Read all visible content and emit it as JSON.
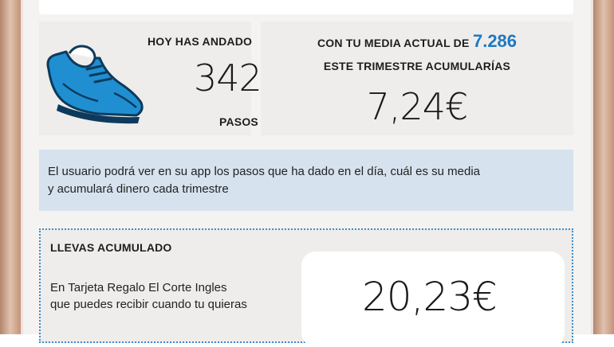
{
  "steps": {
    "title": "HOY HAS ANDADO",
    "count": "342",
    "unit": "PASOS",
    "icon": "shoe-icon",
    "icon_color": "#1f8fd2"
  },
  "average": {
    "line1_prefix": "CON TU MEDIA ACTUAL DE",
    "line1_value": "7.286",
    "line2": "ESTE TRIMESTRE ACUMULARÍAS",
    "amount": "7,24€",
    "value_color": "#1f78bf"
  },
  "info": {
    "line1": "El usuario podrá ver en su app los pasos que ha dado en el día, cuál es su media",
    "line2": "y acumulará dinero cada trimestre"
  },
  "accumulated": {
    "title": "LLEVAS ACUMULADO",
    "desc_line1": "En Tarjeta Regalo El Corte Ingles",
    "desc_line2": "que puedes recibir cuando tu quieras",
    "amount": "20,23€",
    "border_color": "#3a8fce"
  }
}
